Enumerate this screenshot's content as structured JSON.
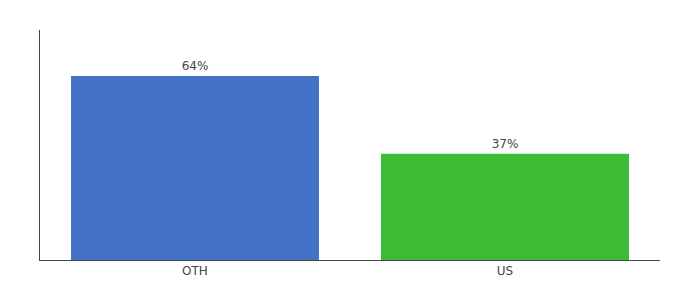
{
  "chart_data": {
    "type": "bar",
    "categories": [
      "OTH",
      "US"
    ],
    "values": [
      64,
      37
    ],
    "value_labels": [
      "64%",
      "37%"
    ],
    "colors": [
      "#4472c4",
      "#3dbb35"
    ],
    "ylim": [
      0,
      80
    ],
    "yticks": [],
    "tick_labels": "x",
    "data_labels": true,
    "grid": false
  }
}
